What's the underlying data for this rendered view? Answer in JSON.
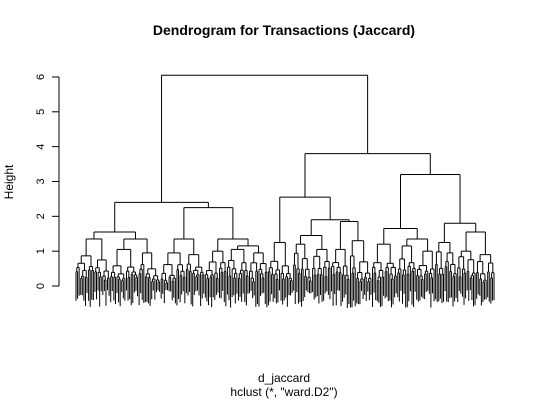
{
  "chart_data": {
    "type": "dendrogram",
    "title": "Dendrogram for Transactions (Jaccard)",
    "ylabel": "Height",
    "xlabel": "d_jaccard",
    "sub": "hclust (*, \"ward.D2\")",
    "ylim": [
      0,
      6.2
    ],
    "yticks": [
      "0",
      "1",
      "2",
      "3",
      "4",
      "5",
      "6"
    ],
    "ytick_values": [
      0,
      1,
      2,
      3,
      4,
      5,
      6
    ],
    "grid": false,
    "leaf_count": 300,
    "merge_heights": {
      "root": 6.05,
      "left_cluster": 2.4,
      "right_cluster": 3.8,
      "right_left_branch": 2.55,
      "right_right_branch": 3.2,
      "left_left_branch": 1.55,
      "left_right_branch": 2.25,
      "right_left_sub_a": 1.9,
      "right_left_sub_b": 1.85,
      "right_right_sub_a": 1.65,
      "right_right_sub_b": 1.8
    }
  },
  "colors": {
    "line": "#000000",
    "background": "#ffffff"
  }
}
